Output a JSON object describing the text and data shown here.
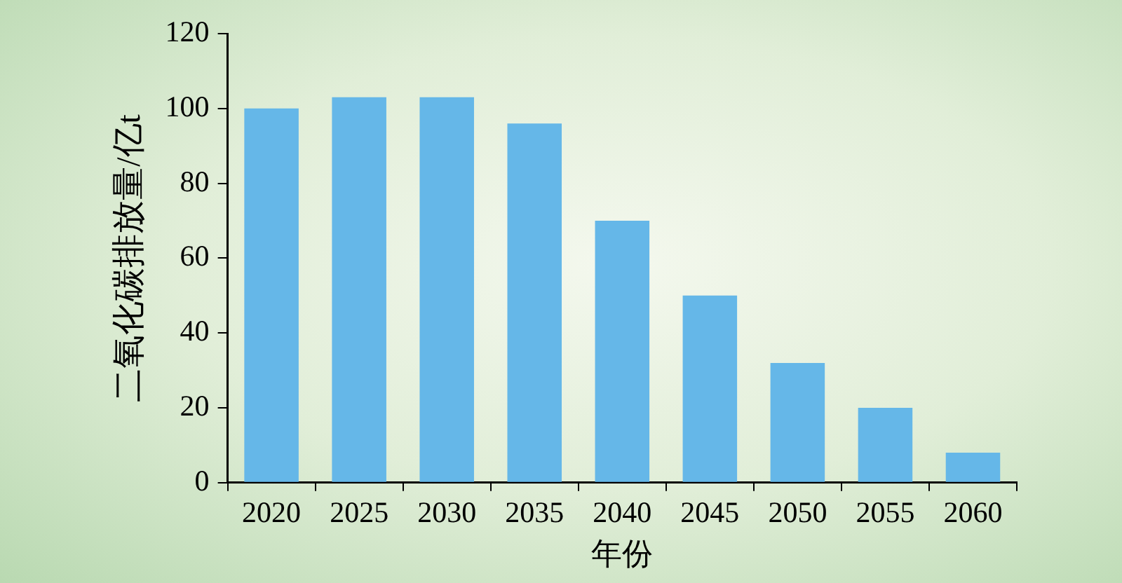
{
  "chart_data": {
    "type": "bar",
    "xlabel": "年份",
    "ylabel": "二氧化碳排放量/亿t",
    "categories": [
      "2020",
      "2025",
      "2030",
      "2035",
      "2040",
      "2045",
      "2050",
      "2055",
      "2060"
    ],
    "values": [
      100,
      103,
      103,
      96,
      70,
      50,
      32,
      20,
      8
    ],
    "color": "#65b7e8",
    "ylim": [
      0,
      120
    ],
    "yticks": [
      0,
      20,
      40,
      60,
      80,
      100,
      120
    ],
    "grid": false,
    "legend": false
  }
}
